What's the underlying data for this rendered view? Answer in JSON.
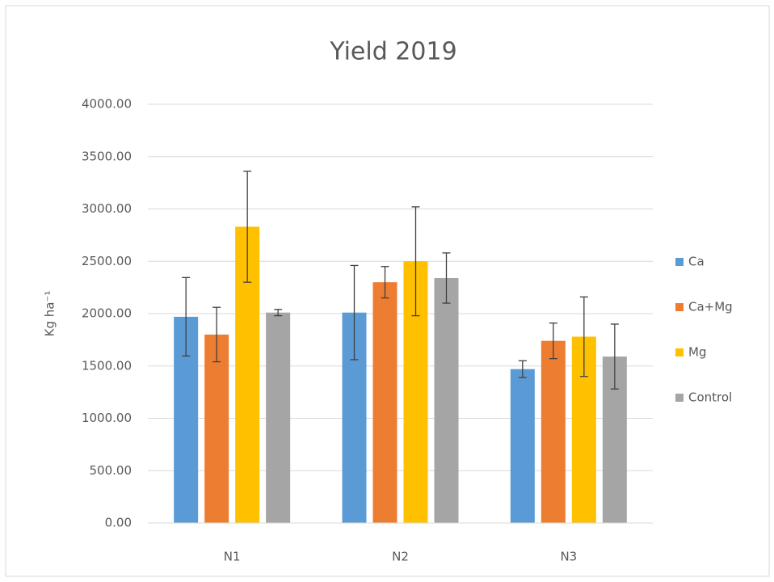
{
  "chart_data": {
    "type": "bar",
    "title": "Yield 2019",
    "y_label": "Kg ha⁻¹",
    "categories": [
      "N1",
      "N2",
      "N3"
    ],
    "series": [
      {
        "name": "Ca",
        "color": "#5b9bd5",
        "values": [
          1970,
          2010,
          1470
        ],
        "errors": [
          375,
          450,
          80
        ]
      },
      {
        "name": "Ca+Mg",
        "color": "#ed7d31",
        "values": [
          1800,
          2300,
          1740
        ],
        "errors": [
          260,
          150,
          170
        ]
      },
      {
        "name": "Mg",
        "color": "#ffc000",
        "values": [
          2830,
          2500,
          1780
        ],
        "errors": [
          530,
          520,
          380
        ]
      },
      {
        "name": "Control",
        "color": "#a5a5a5",
        "values": [
          2010,
          2340,
          1590
        ],
        "errors": [
          30,
          240,
          310
        ]
      }
    ],
    "ylim": [
      0,
      4000
    ],
    "yticks": [
      {
        "value": 0,
        "label": "0.00"
      },
      {
        "value": 500,
        "label": "500.00"
      },
      {
        "value": 1000,
        "label": "1000.00"
      },
      {
        "value": 1500,
        "label": "1500.00"
      },
      {
        "value": 2000,
        "label": "2000.00"
      },
      {
        "value": 2500,
        "label": "2500.00"
      },
      {
        "value": 3000,
        "label": "3000.00"
      },
      {
        "value": 3500,
        "label": "3500.00"
      },
      {
        "value": 4000,
        "label": "4000.00"
      }
    ],
    "grid": true,
    "legend": "right"
  }
}
